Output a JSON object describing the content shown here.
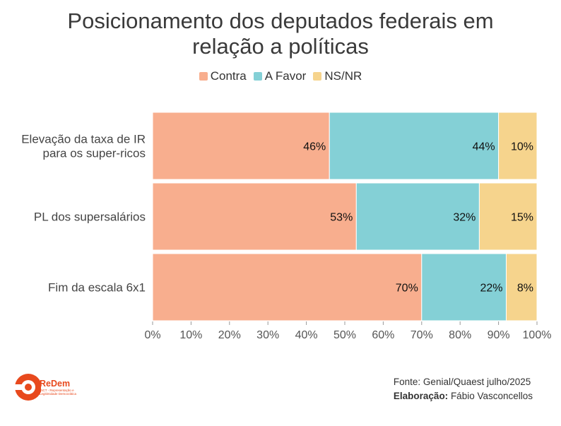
{
  "title_lines": [
    "Posicionamento dos deputados federais em",
    "relação a políticas"
  ],
  "legend": [
    {
      "label": "Contra",
      "color": "#f8ae8e"
    },
    {
      "label": "A Favor",
      "color": "#84d0d6"
    },
    {
      "label": "NS/NR",
      "color": "#f6d48d"
    }
  ],
  "chart_data": {
    "type": "bar",
    "orientation": "horizontal",
    "stacked": true,
    "categories": [
      "Elevação da taxa de IR\npara os super-ricos",
      "PL dos supersalários",
      "Fim da escala 6x1"
    ],
    "series": [
      {
        "name": "Contra",
        "values": [
          46,
          53,
          70
        ],
        "labels": [
          "46%",
          "53%",
          "70%"
        ],
        "color": "#f8ae8e"
      },
      {
        "name": "A Favor",
        "values": [
          44,
          32,
          22
        ],
        "labels": [
          "44%",
          "32%",
          "22%"
        ],
        "color": "#84d0d6"
      },
      {
        "name": "NS/NR",
        "values": [
          10,
          15,
          8
        ],
        "labels": [
          "10%",
          "15%",
          "8%"
        ],
        "color": "#f6d48d"
      }
    ],
    "xlim": [
      0,
      100
    ],
    "xticks": [
      "0%",
      "10%",
      "20%",
      "30%",
      "40%",
      "50%",
      "60%",
      "70%",
      "80%",
      "90%",
      "100%"
    ],
    "grid": false,
    "legend_position": "top-center"
  },
  "footer": {
    "source": "Fonte: Genial/Quaest julho/2025",
    "credit_label": "Elaboração:",
    "credit_name": " Fábio Vasconcellos"
  },
  "logo": {
    "name": "ReDem",
    "subtitle": "INCT - Representação e Legitimidade Democrática",
    "color": "#e8491d"
  }
}
